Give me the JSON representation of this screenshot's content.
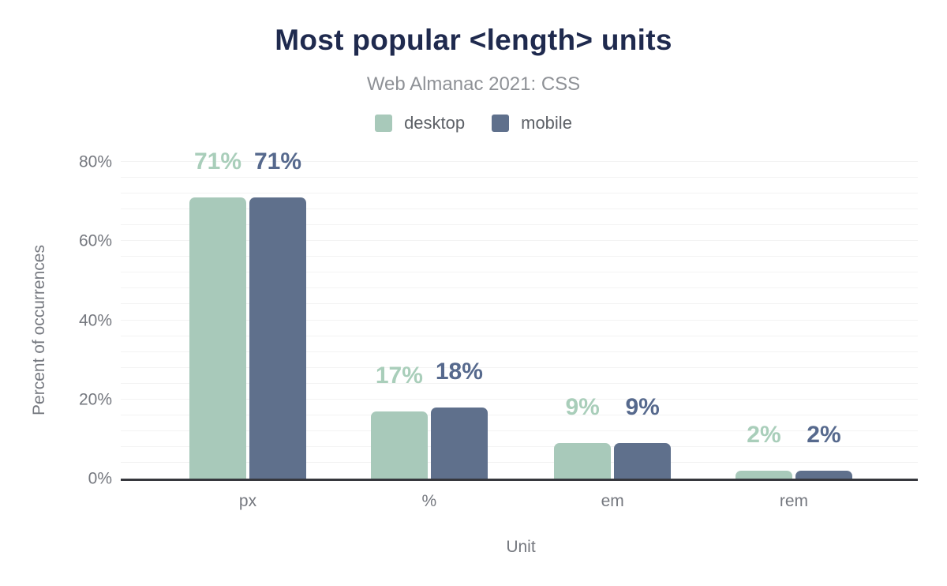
{
  "header": {
    "title": "Most popular <length> units",
    "subtitle": "Web Almanac 2021: CSS"
  },
  "legend": [
    {
      "label": "desktop",
      "color": "#a8c9ba"
    },
    {
      "label": "mobile",
      "color": "#5f708c"
    }
  ],
  "chart_data": {
    "type": "bar",
    "title": "Most popular <length> units",
    "subtitle": "Web Almanac 2021: CSS",
    "categories": [
      "px",
      "%",
      "em",
      "rem"
    ],
    "series": [
      {
        "name": "desktop",
        "color": "#a8c9ba",
        "label_color": "#a9ceba",
        "values": [
          71,
          17,
          9,
          2
        ],
        "display": [
          "71%",
          "17%",
          "9%",
          "2%"
        ]
      },
      {
        "name": "mobile",
        "color": "#5f708c",
        "label_color": "#56698d",
        "values": [
          71,
          18,
          9,
          2
        ],
        "display": [
          "71%",
          "18%",
          "9%",
          "2%"
        ]
      }
    ],
    "xlabel": "Unit",
    "ylabel": "Percent of occurrences",
    "ylim": [
      0,
      80
    ],
    "yticks": [
      0,
      20,
      40,
      60,
      80
    ],
    "ytick_labels": [
      "0%",
      "20%",
      "40%",
      "60%",
      "80%"
    ],
    "grid": {
      "step": 4,
      "color": "#f3f3f3",
      "axis_line_color": "#36373d",
      "grid_on": true
    },
    "legend_position": "top",
    "text_colors": {
      "title": "#1f2a4e",
      "subtitle": "#8e9196",
      "legend": "#5d6167",
      "axis": "#75787f"
    }
  }
}
